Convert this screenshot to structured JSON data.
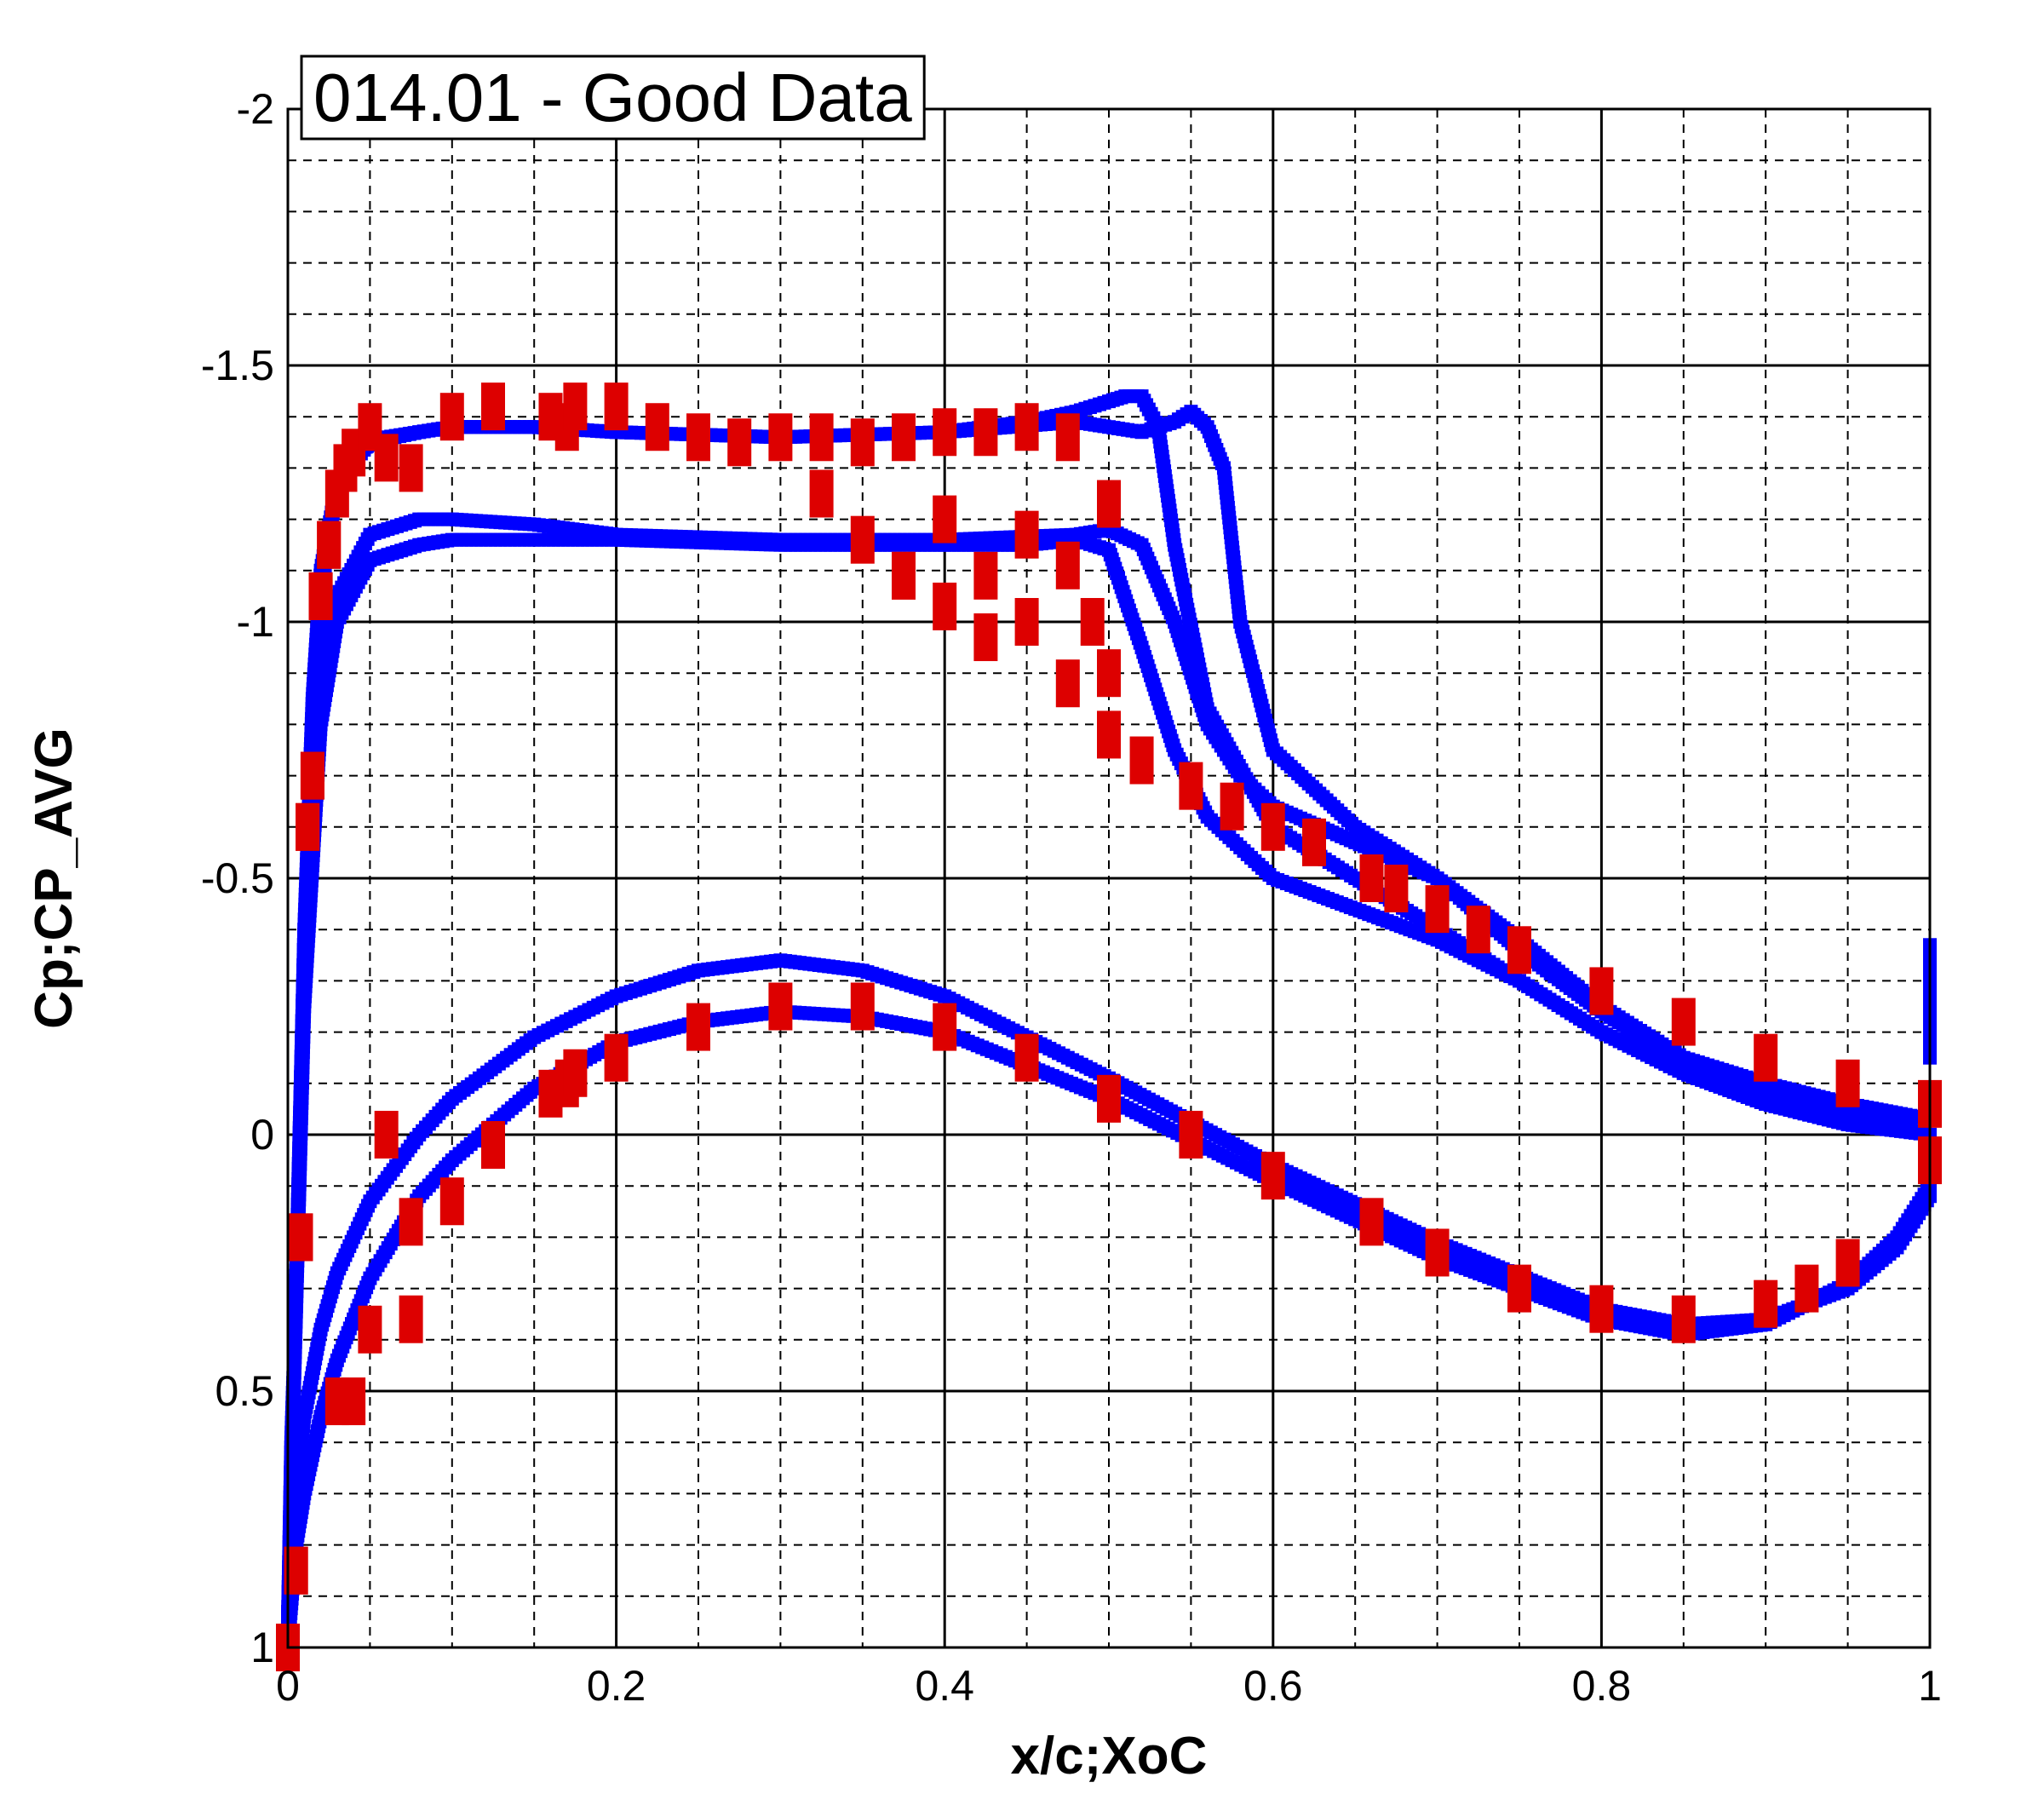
{
  "chart_data": {
    "type": "scatter",
    "title": "014.01 - Good Data",
    "xlabel": "x/c;XoC",
    "ylabel": "Cp;CP_AVG",
    "xlim": [
      0,
      1
    ],
    "ylim": [
      1,
      -2
    ],
    "y_inverted": true,
    "x_ticks": [
      "0",
      "0.2",
      "0.4",
      "0.6",
      "0.8",
      "1"
    ],
    "y_ticks": [
      "-2",
      "-1.5",
      "-1",
      "-0.5",
      "0",
      "0.5",
      "1"
    ],
    "grid": true,
    "colors": {
      "computed": "#0000ff",
      "measured": "#dd0000"
    },
    "series": [
      {
        "marker": "small-square",
        "color": "#0000ff",
        "curves": [
          {
            "x": [
              0,
              0.002,
              0.005,
              0.01,
              0.015,
              0.02,
              0.03,
              0.04,
              0.06,
              0.08,
              0.1,
              0.15,
              0.2,
              0.3,
              0.4,
              0.45,
              0.48,
              0.5,
              0.51,
              0.52,
              0.53,
              0.54,
              0.56,
              0.6,
              0.65,
              0.7,
              0.75,
              0.8,
              0.85,
              0.9,
              0.95,
              1
            ],
            "y": [
              0.95,
              0.6,
              0.3,
              -0.4,
              -0.85,
              -1.1,
              -1.27,
              -1.33,
              -1.36,
              -1.37,
              -1.38,
              -1.38,
              -1.37,
              -1.36,
              -1.37,
              -1.39,
              -1.41,
              -1.43,
              -1.44,
              -1.44,
              -1.38,
              -1.15,
              -0.83,
              -0.6,
              -0.5,
              -0.4,
              -0.3,
              -0.2,
              -0.12,
              -0.06,
              -0.02,
              0
            ]
          },
          {
            "x": [
              0,
              0.01,
              0.02,
              0.03,
              0.05,
              0.08,
              0.1,
              0.15,
              0.2,
              0.3,
              0.4,
              0.48,
              0.5,
              0.52,
              0.54,
              0.55,
              0.56,
              0.57,
              0.58,
              0.6,
              0.65,
              0.7,
              0.75,
              0.8,
              0.85,
              0.9,
              0.95,
              1
            ],
            "y": [
              0.95,
              -0.4,
              -1.05,
              -1.27,
              -1.35,
              -1.37,
              -1.38,
              -1.38,
              -1.37,
              -1.36,
              -1.37,
              -1.39,
              -1.38,
              -1.37,
              -1.39,
              -1.41,
              -1.38,
              -1.3,
              -1.0,
              -0.75,
              -0.6,
              -0.5,
              -0.38,
              -0.25,
              -0.15,
              -0.1,
              -0.06,
              -0.03
            ]
          },
          {
            "x": [
              0,
              0.01,
              0.02,
              0.03,
              0.05,
              0.08,
              0.1,
              0.15,
              0.2,
              0.3,
              0.4,
              0.48,
              0.5,
              0.52,
              0.54,
              0.56,
              0.58,
              0.6,
              0.65,
              0.7,
              0.75,
              0.8,
              0.85,
              0.9,
              0.95,
              1
            ],
            "y": [
              0.95,
              -0.3,
              -0.85,
              -1.05,
              -1.17,
              -1.2,
              -1.2,
              -1.19,
              -1.17,
              -1.16,
              -1.16,
              -1.17,
              -1.18,
              -1.15,
              -1.0,
              -0.8,
              -0.7,
              -0.64,
              -0.57,
              -0.5,
              -0.36,
              -0.24,
              -0.14,
              -0.08,
              -0.04,
              0
            ]
          },
          {
            "x": [
              0,
              0.01,
              0.02,
              0.03,
              0.05,
              0.08,
              0.1,
              0.15,
              0.2,
              0.3,
              0.4,
              0.45,
              0.48,
              0.5,
              0.52,
              0.54,
              0.56,
              0.6,
              0.65,
              0.7,
              0.75,
              0.8,
              0.85,
              0.9,
              0.95,
              1
            ],
            "y": [
              0.95,
              -0.25,
              -0.8,
              -1.0,
              -1.12,
              -1.15,
              -1.16,
              -1.16,
              -1.16,
              -1.15,
              -1.15,
              -1.15,
              -1.16,
              -1.14,
              -0.95,
              -0.75,
              -0.62,
              -0.5,
              -0.44,
              -0.38,
              -0.3,
              -0.2,
              -0.12,
              -0.06,
              -0.02,
              0
            ]
          },
          {
            "x": [
              0,
              0.005,
              0.01,
              0.02,
              0.03,
              0.05,
              0.08,
              0.1,
              0.15,
              0.2,
              0.25,
              0.3,
              0.35,
              0.4,
              0.5,
              0.6,
              0.7,
              0.8,
              0.85,
              0.9,
              0.95,
              0.98,
              1
            ],
            "y": [
              1.0,
              0.8,
              0.7,
              0.55,
              0.44,
              0.28,
              0.12,
              0.05,
              -0.09,
              -0.18,
              -0.22,
              -0.24,
              -0.23,
              -0.2,
              -0.07,
              0.09,
              0.24,
              0.36,
              0.39,
              0.37,
              0.29,
              0.2,
              0.1
            ]
          },
          {
            "x": [
              0,
              0.005,
              0.01,
              0.02,
              0.03,
              0.05,
              0.08,
              0.1,
              0.15,
              0.2,
              0.25,
              0.3,
              0.35,
              0.4,
              0.5,
              0.6,
              0.7,
              0.8,
              0.85,
              0.9,
              0.95,
              0.98,
              1
            ],
            "y": [
              1.0,
              0.7,
              0.55,
              0.38,
              0.27,
              0.13,
              0.0,
              -0.07,
              -0.19,
              -0.27,
              -0.32,
              -0.34,
              -0.32,
              -0.27,
              -0.11,
              0.06,
              0.21,
              0.34,
              0.37,
              0.36,
              0.3,
              0.22,
              0.12
            ]
          },
          {
            "x": [
              1,
              1,
              1,
              1,
              1
            ],
            "y": [
              -0.37,
              -0.3,
              -0.25,
              -0.2,
              -0.15
            ]
          }
        ]
      },
      {
        "marker": "square",
        "color": "#dd0000",
        "x": [
          0,
          0.005,
          0.008,
          0.012,
          0.015,
          0.02,
          0.025,
          0.03,
          0.035,
          0.04,
          0.05,
          0.06,
          0.075,
          0.1,
          0.125,
          0.16,
          0.17,
          0.175,
          0.2,
          0.225,
          0.25,
          0.275,
          0.3,
          0.325,
          0.35,
          0.375,
          0.4,
          0.425,
          0.45,
          0.475,
          0.5,
          0.325,
          0.35,
          0.375,
          0.4,
          0.425,
          0.45,
          0.475,
          0.49,
          0.5,
          0.375,
          0.4,
          0.425,
          0.45,
          0.475,
          0.5,
          0.52,
          0.55,
          0.575,
          0.6,
          0.625,
          0.66,
          0.675,
          0.7,
          0.725,
          0.75,
          0.8,
          0.85,
          0.9,
          0.95,
          1,
          0.005,
          0.008,
          0.012,
          0.015,
          0.02,
          0.025,
          0.03,
          0.04,
          0.05,
          0.06,
          0.075,
          0.1,
          0.125,
          0.16,
          0.17,
          0.175,
          0.2,
          0.25,
          0.3,
          0.35,
          0.4,
          0.45,
          0.5,
          0.55,
          0.6,
          0.66,
          0.7,
          0.75,
          0.8,
          0.85,
          0.9,
          0.925,
          0.95,
          1,
          0.075
        ],
        "y": [
          1.0,
          0.85,
          0.2,
          -0.6,
          -0.7,
          -1.05,
          -1.15,
          -1.25,
          -1.3,
          -1.33,
          -1.38,
          -1.32,
          -1.3,
          -1.4,
          -1.42,
          -1.4,
          -1.38,
          -1.42,
          -1.42,
          -1.38,
          -1.36,
          -1.35,
          -1.36,
          -1.36,
          -1.35,
          -1.36,
          -1.37,
          -1.37,
          -1.38,
          -1.36,
          -1.23,
          -1.25,
          -1.16,
          -1.09,
          -1.2,
          -1.09,
          -1.17,
          -1.11,
          -1.0,
          -0.9,
          -1.09,
          -1.03,
          -0.97,
          -1.0,
          -0.88,
          -0.78,
          -0.73,
          -0.68,
          -0.64,
          -0.6,
          -0.57,
          -0.5,
          -0.48,
          -0.44,
          -0.4,
          -0.36,
          -0.28,
          -0.22,
          -0.15,
          -0.1,
          -0.06,
          0.85,
          0.2,
          -0.6,
          -0.7,
          -1.05,
          -1.15,
          0.52,
          0.52,
          0.38,
          0.0,
          0.17,
          0.13,
          0.02,
          -0.08,
          -0.1,
          -0.12,
          -0.15,
          -0.21,
          -0.25,
          -0.25,
          -0.21,
          -0.15,
          -0.07,
          0.0,
          0.08,
          0.17,
          0.23,
          0.3,
          0.34,
          0.36,
          0.33,
          0.3,
          0.25,
          0.05,
          0.36
        ]
      }
    ]
  }
}
